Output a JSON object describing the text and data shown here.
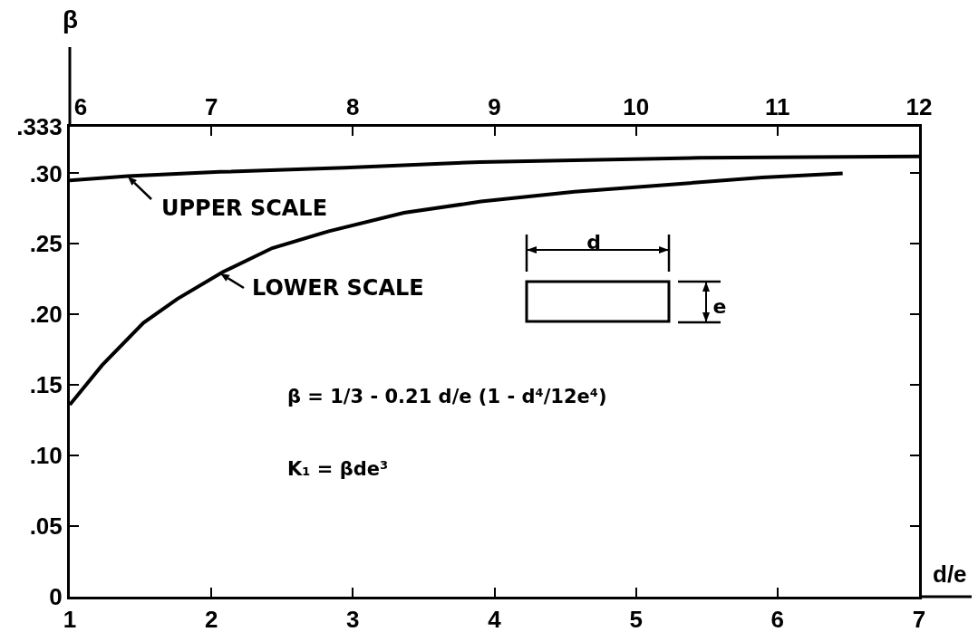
{
  "chart_data": {
    "type": "line",
    "xlabel": "d/e",
    "ylabel": "β",
    "xlim": [
      1,
      7
    ],
    "xticks": [
      1,
      2,
      3,
      4,
      5,
      6,
      7
    ],
    "x2lim": [
      6,
      12
    ],
    "x2ticks": [
      6,
      7,
      8,
      9,
      10,
      11,
      12
    ],
    "ylim": [
      0,
      0.333
    ],
    "yticks": [
      0,
      {
        "value": 0.05,
        "label": ".05"
      },
      {
        "value": 0.1,
        "label": ".10"
      },
      {
        "value": 0.15,
        "label": ".15"
      },
      {
        "value": 0.2,
        "label": ".20"
      },
      {
        "value": 0.25,
        "label": ".25"
      },
      {
        "value": 0.3,
        "label": ".30"
      },
      {
        "value": 0.333,
        "label": ".333"
      }
    ],
    "series": [
      {
        "color": "#000000",
        "x": [
          1,
          1.228,
          1.52,
          1.76,
          2.08,
          2.43,
          2.83,
          3.36,
          3.905,
          4.566,
          5.23,
          5.89,
          6.46
        ],
        "values": [
          0.136,
          0.164,
          0.194,
          0.211,
          0.23,
          0.247,
          0.259,
          0.272,
          0.28,
          0.287,
          0.292,
          0.297,
          0.3
        ]
      },
      {
        "color": "#000000",
        "axis": "x2",
        "x": [
          6,
          6.41,
          7.06,
          7.94,
          8.9,
          10.45,
          12
        ],
        "values": [
          0.295,
          0.298,
          0.301,
          0.304,
          0.308,
          0.311,
          0.312
        ]
      }
    ],
    "annotations": [
      {
        "text": "UPPER SCALE",
        "x": 1.41,
        "y": 0.298
      },
      {
        "text": "LOWER SCALE",
        "x": 2.06,
        "y": 0.229
      },
      "d",
      "e",
      "β = 1/3 - 0.21 d/e (1 - d⁴/12e⁴)",
      "K₁ = βde³"
    ]
  }
}
